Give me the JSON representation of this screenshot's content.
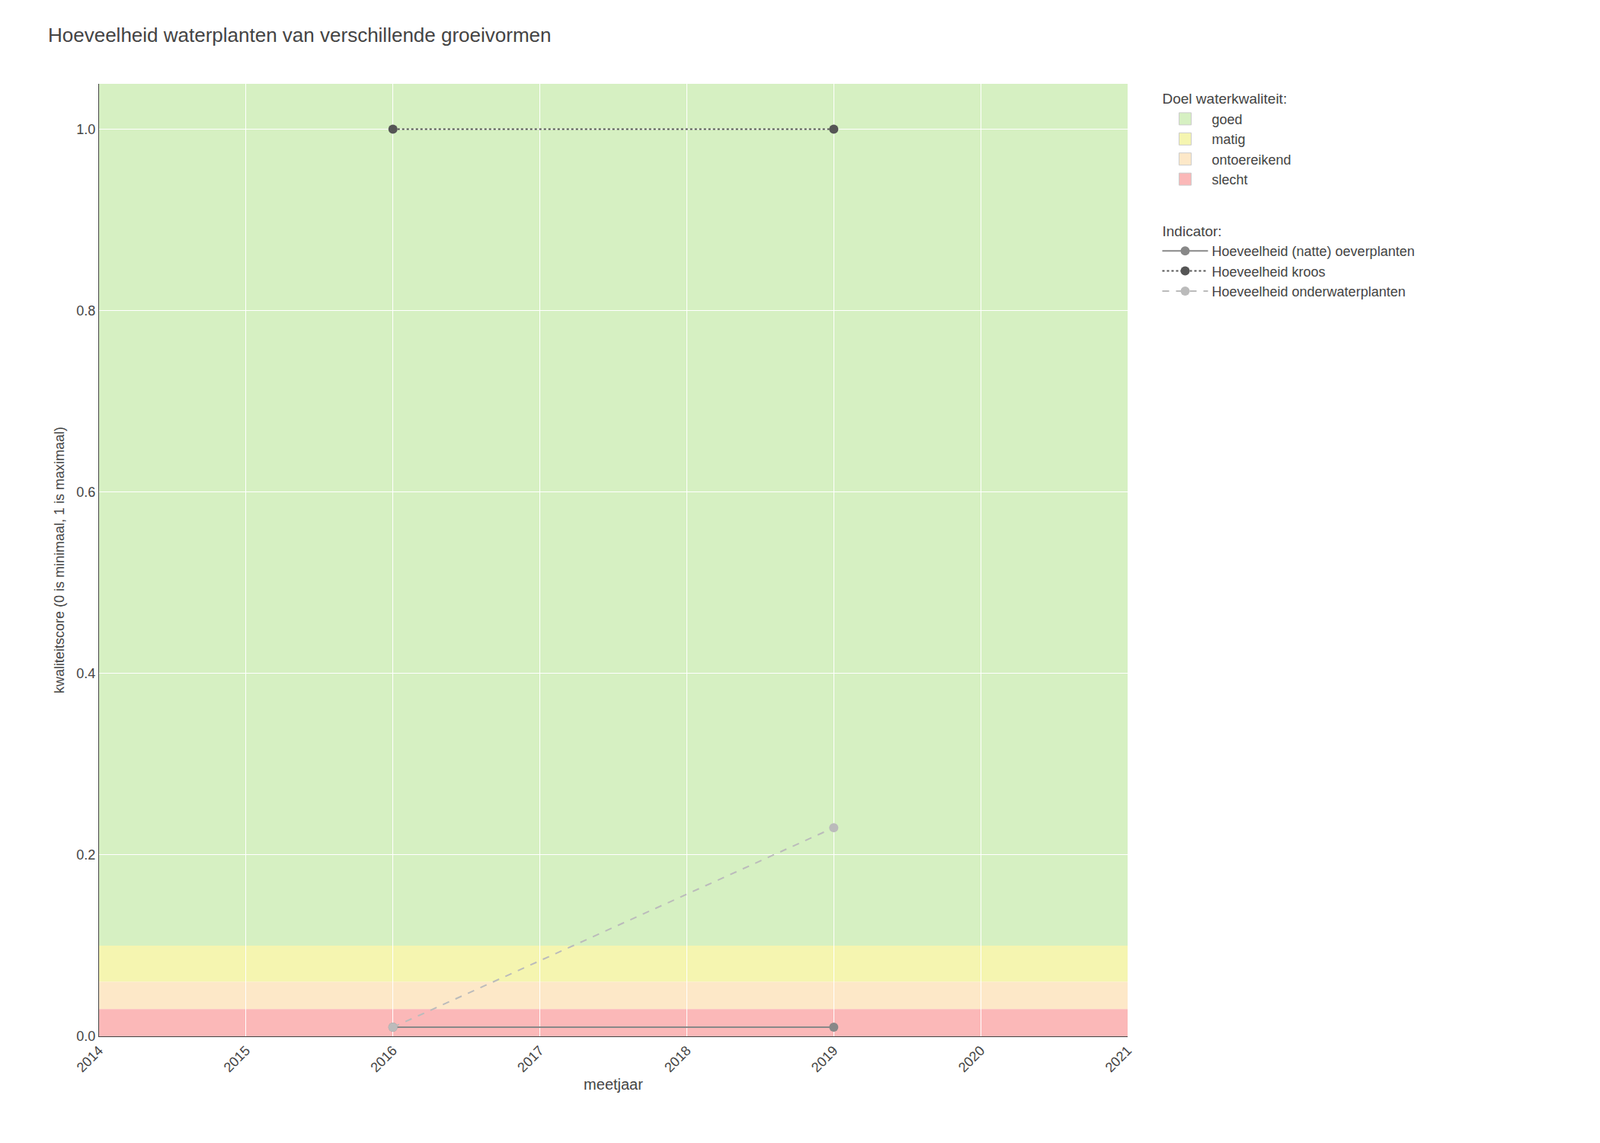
{
  "chart_data": {
    "type": "line",
    "title": "Hoeveelheid waterplanten van verschillende groeivormen",
    "x_label": "meetjaar",
    "y_label": "kwaliteitscore (0 is minimaal, 1 is maximaal)",
    "x": [
      2016,
      2019
    ],
    "series_legend_title": "Indicator:",
    "series": [
      {
        "name": "Hoeveelheid (natte) oeverplanten",
        "color": "#888888",
        "line_style": "solid",
        "marker": "circle",
        "values": [
          0.01,
          0.01
        ]
      },
      {
        "name": "Hoeveelheid kroos",
        "color": "#555555",
        "line_style": "dotted",
        "marker": "circle",
        "values": [
          1.0,
          1.0
        ]
      },
      {
        "name": "Hoeveelheid onderwaterplanten",
        "color": "#bbbbbb",
        "line_style": "dashed",
        "marker": "circle",
        "values": [
          0.01,
          0.23
        ]
      }
    ],
    "bands_legend_title": "Doel waterkwaliteit:",
    "bands": [
      {
        "name": "goed",
        "color": "#d6f0c2",
        "ymin": 0.1,
        "ymax": 1.05
      },
      {
        "name": "matig",
        "color": "#f5f5b0",
        "ymin": 0.06,
        "ymax": 0.1
      },
      {
        "name": "ontoereikend",
        "color": "#fde8c8",
        "ymin": 0.03,
        "ymax": 0.06
      },
      {
        "name": "slecht",
        "color": "#fbb8b8",
        "ymin": 0.0,
        "ymax": 0.03
      }
    ],
    "xlim": [
      2014,
      2021
    ],
    "xticks": [
      2014,
      2015,
      2016,
      2017,
      2018,
      2019,
      2020,
      2021
    ],
    "ylim": [
      0,
      1.05
    ],
    "yticks": [
      {
        "value": 0,
        "label": "0.0"
      },
      0.2,
      0.4,
      0.6,
      0.8,
      {
        "value": 1,
        "label": "1.0"
      }
    ],
    "grid": true
  }
}
